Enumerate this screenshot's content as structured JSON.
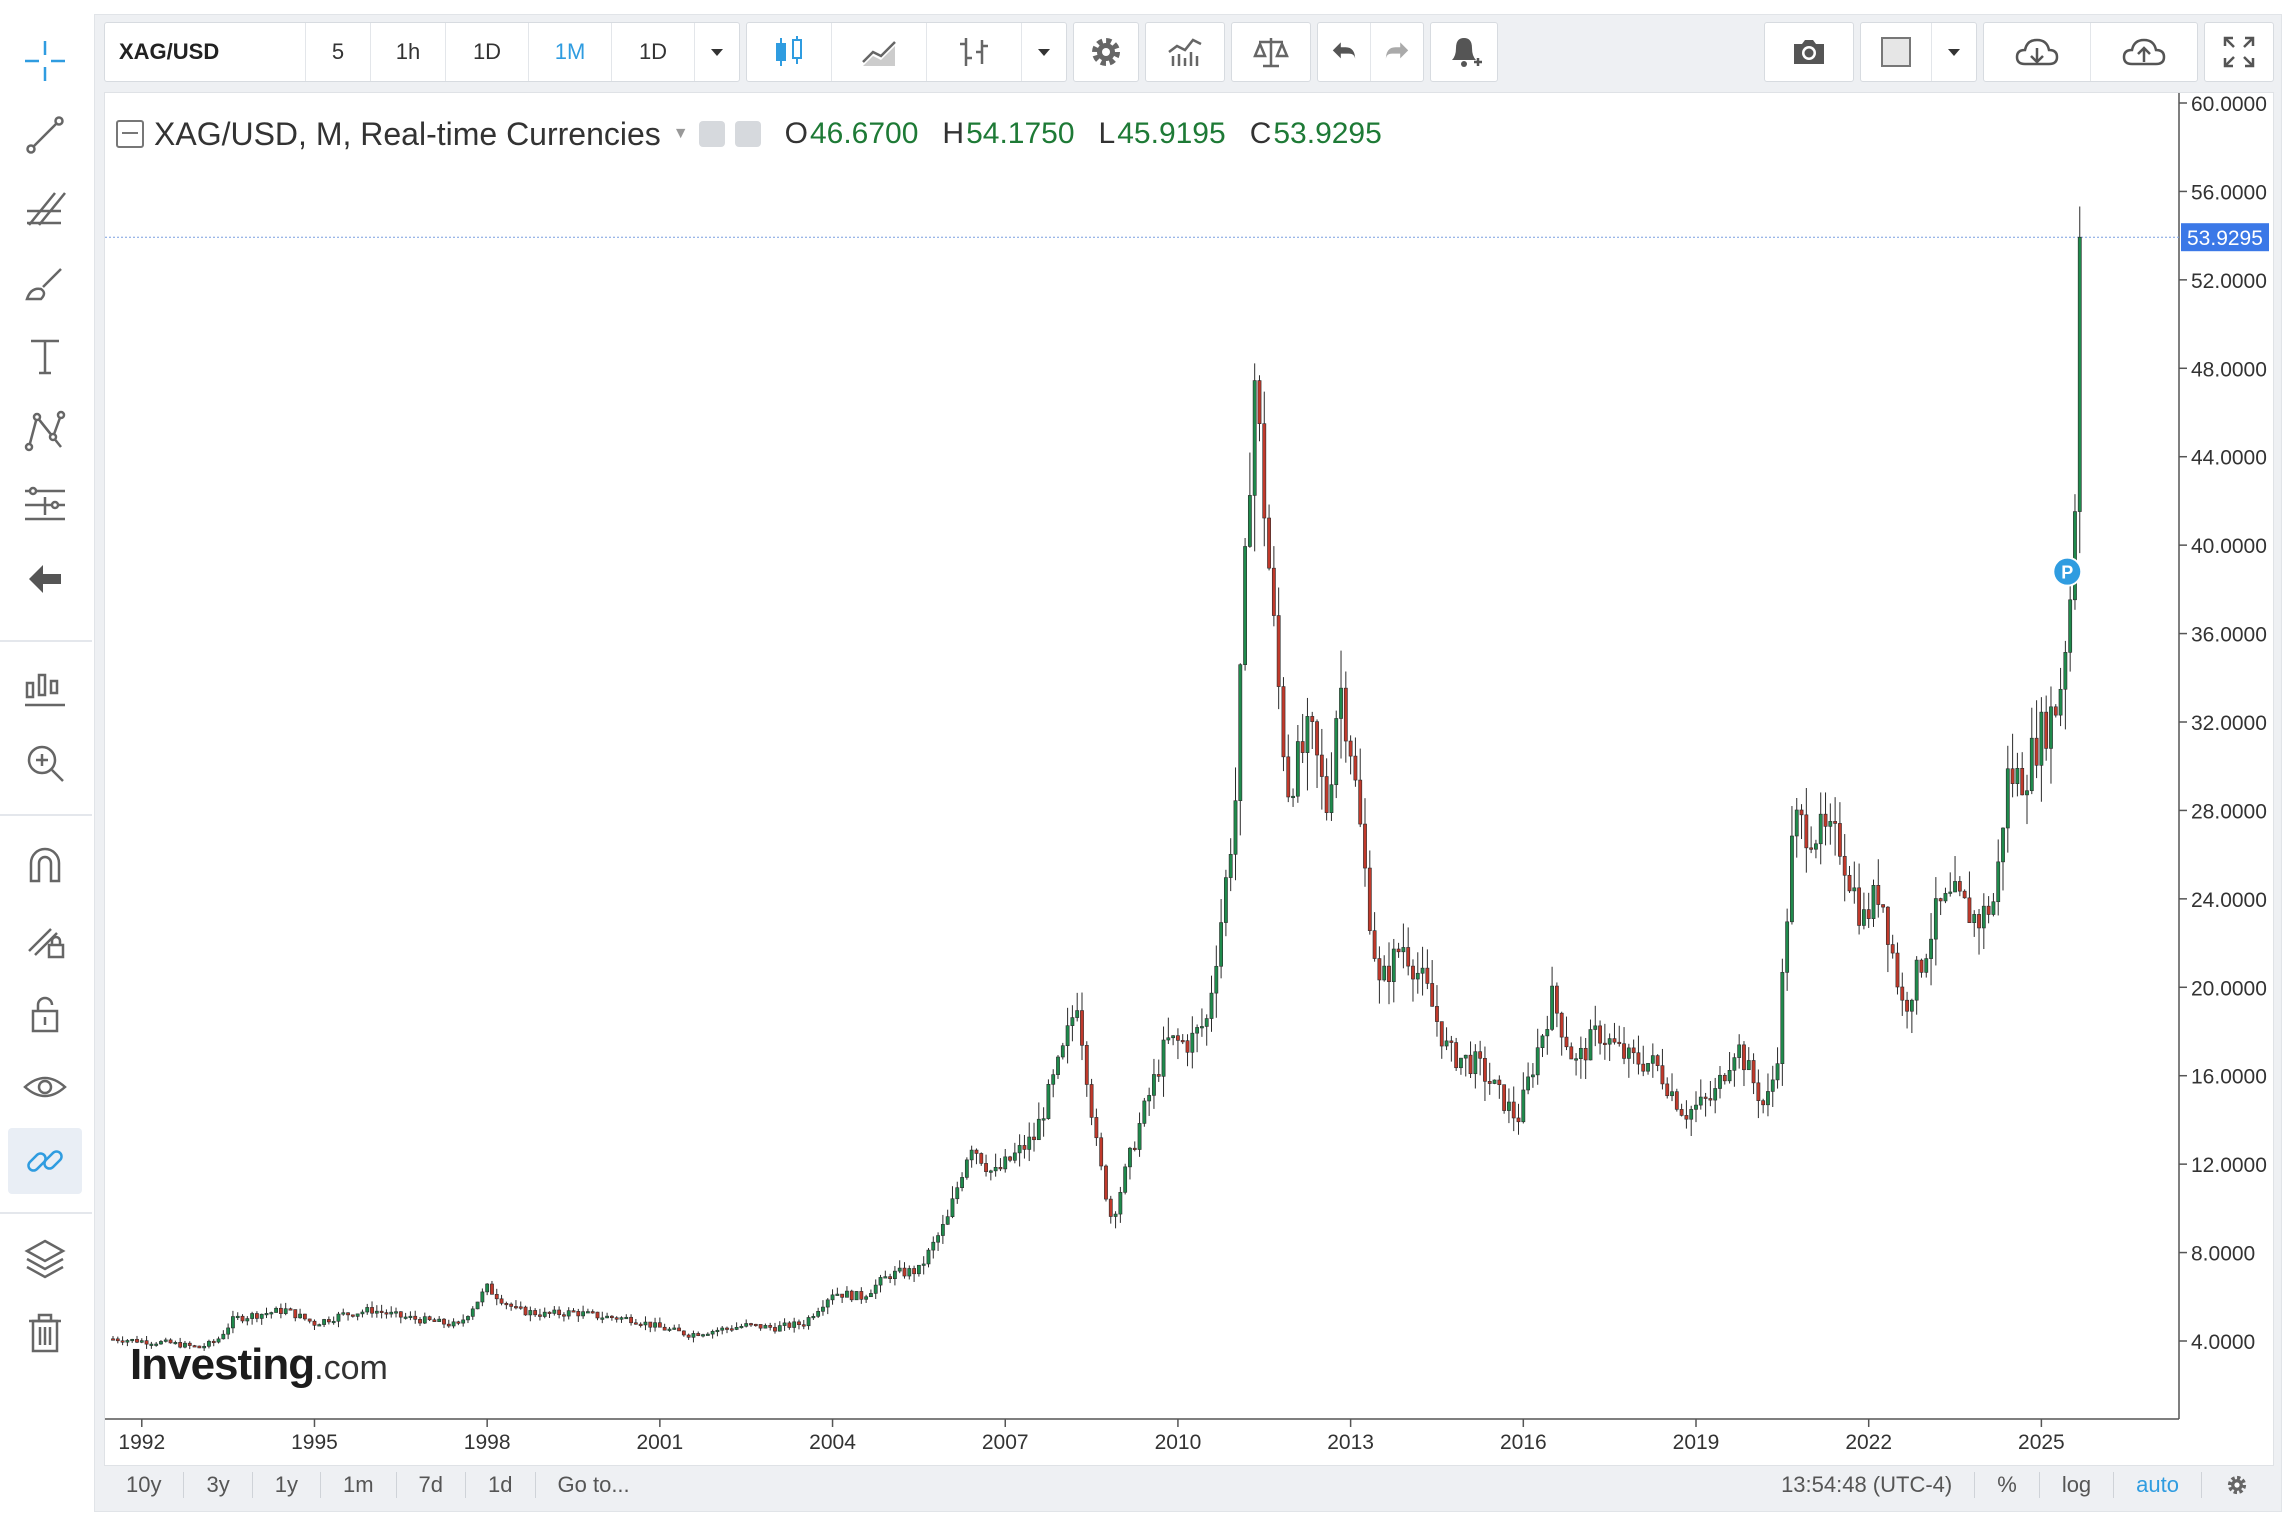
{
  "toolbar": {
    "symbol": "XAG/USD",
    "intervals": [
      "5",
      "1h",
      "1D",
      "1M",
      "1D"
    ],
    "active_interval": "1M"
  },
  "legend": {
    "title": "XAG/USD, M, Real-time Currencies",
    "o_label": "O",
    "o_value": "46.6700",
    "h_label": "H",
    "h_value": "54.1750",
    "l_label": "L",
    "l_value": "45.9195",
    "c_label": "C",
    "c_value": "53.9295"
  },
  "watermark": {
    "brand": "Investing",
    "suffix": ".com"
  },
  "bottom_bar": {
    "ranges": [
      "10y",
      "3y",
      "1y",
      "1m",
      "7d",
      "1d"
    ],
    "goto": "Go to...",
    "time": "13:54:48 (UTC-4)",
    "percent": "%",
    "log": "log",
    "auto": "auto"
  },
  "colors": {
    "up": "#1f8a4c",
    "down": "#c0392b",
    "accent": "#2f9ce0",
    "price_label_bg": "#3b78e7"
  },
  "icons": {
    "left_toolbar": [
      "crosshair-icon",
      "trend-line-icon",
      "fib-icon",
      "brush-icon",
      "text-icon",
      "pattern-icon",
      "measure-icon",
      "back-arrow-icon",
      "indicators-icon",
      "zoom-in-icon",
      "magnet-icon",
      "lock-drawing-icon",
      "unlock-icon",
      "eye-icon",
      "link-icon",
      "layers-icon",
      "trash-icon"
    ]
  },
  "chart_data": {
    "type": "candlestick",
    "symbol": "XAG/USD",
    "timeframe": "Monthly",
    "y_axis": {
      "min": 0.0,
      "max": 60.0,
      "ticks": [
        "60.0000",
        "56.0000",
        "52.0000",
        "48.0000",
        "44.0000",
        "40.0000",
        "36.0000",
        "32.0000",
        "28.0000",
        "24.0000",
        "20.0000",
        "16.0000",
        "12.0000",
        "8.0000",
        "4.0000"
      ]
    },
    "x_axis": {
      "start_year": 1991.5,
      "end_year": 2026.8,
      "ticks": [
        "1992",
        "1995",
        "1998",
        "2001",
        "2004",
        "2007",
        "2010",
        "2013",
        "2016",
        "2019",
        "2022",
        "2025"
      ]
    },
    "last_price": 53.9295,
    "last_price_label": "53.9295",
    "marker": {
      "label": "P",
      "year": 2025.45,
      "price": 38.8
    },
    "price_path": [
      [
        1991.5,
        4.1
      ],
      [
        1992.0,
        4.0
      ],
      [
        1992.5,
        3.9
      ],
      [
        1993.0,
        3.7
      ],
      [
        1993.3,
        4.0
      ],
      [
        1993.6,
        5.0
      ],
      [
        1994.0,
        5.2
      ],
      [
        1994.5,
        5.4
      ],
      [
        1995.0,
        4.8
      ],
      [
        1995.5,
        5.2
      ],
      [
        1996.0,
        5.4
      ],
      [
        1996.5,
        5.1
      ],
      [
        1997.0,
        4.9
      ],
      [
        1997.5,
        4.7
      ],
      [
        1998.0,
        6.4
      ],
      [
        1998.5,
        5.4
      ],
      [
        1999.0,
        5.2
      ],
      [
        1999.5,
        5.3
      ],
      [
        2000.0,
        5.1
      ],
      [
        2000.5,
        5.0
      ],
      [
        2001.0,
        4.6
      ],
      [
        2001.5,
        4.3
      ],
      [
        2002.0,
        4.5
      ],
      [
        2002.5,
        4.7
      ],
      [
        2003.0,
        4.6
      ],
      [
        2003.5,
        4.8
      ],
      [
        2004.0,
        6.2
      ],
      [
        2004.5,
        6.0
      ],
      [
        2005.0,
        7.0
      ],
      [
        2005.5,
        7.2
      ],
      [
        2006.0,
        9.5
      ],
      [
        2006.4,
        13.0
      ],
      [
        2006.8,
        11.5
      ],
      [
        2007.5,
        13.2
      ],
      [
        2008.0,
        17.0
      ],
      [
        2008.25,
        19.5
      ],
      [
        2008.6,
        12.5
      ],
      [
        2008.85,
        9.5
      ],
      [
        2009.3,
        13.5
      ],
      [
        2009.8,
        17.5
      ],
      [
        2010.2,
        17.5
      ],
      [
        2010.5,
        18.5
      ],
      [
        2010.8,
        24.0
      ],
      [
        2011.0,
        28.5
      ],
      [
        2011.32,
        48.0
      ],
      [
        2011.7,
        35.0
      ],
      [
        2011.9,
        29.0
      ],
      [
        2012.3,
        31.5
      ],
      [
        2012.6,
        28.0
      ],
      [
        2012.8,
        34.0
      ],
      [
        2013.0,
        31.0
      ],
      [
        2013.3,
        24.0
      ],
      [
        2013.5,
        20.0
      ],
      [
        2013.9,
        22.0
      ],
      [
        2014.3,
        20.0
      ],
      [
        2014.7,
        17.0
      ],
      [
        2015.2,
        16.5
      ],
      [
        2015.9,
        14.0
      ],
      [
        2016.5,
        19.5
      ],
      [
        2016.9,
        16.5
      ],
      [
        2017.3,
        18.0
      ],
      [
        2017.8,
        16.8
      ],
      [
        2018.3,
        16.5
      ],
      [
        2018.8,
        14.3
      ],
      [
        2019.3,
        15.0
      ],
      [
        2019.7,
        17.5
      ],
      [
        2020.2,
        14.5
      ],
      [
        2020.4,
        16.5
      ],
      [
        2020.6,
        24.0
      ],
      [
        2020.7,
        27.5
      ],
      [
        2021.1,
        27.0
      ],
      [
        2021.5,
        26.5
      ],
      [
        2021.9,
        23.0
      ],
      [
        2022.2,
        24.5
      ],
      [
        2022.6,
        19.0
      ],
      [
        2022.9,
        21.0
      ],
      [
        2023.2,
        23.5
      ],
      [
        2023.5,
        24.0
      ],
      [
        2023.9,
        23.0
      ],
      [
        2024.2,
        24.0
      ],
      [
        2024.4,
        29.5
      ],
      [
        2024.7,
        29.5
      ],
      [
        2024.9,
        31.0
      ],
      [
        2025.1,
        32.0
      ],
      [
        2025.3,
        33.0
      ],
      [
        2025.45,
        36.5
      ],
      [
        2025.55,
        39.0
      ],
      [
        2025.62,
        46.0
      ],
      [
        2025.7,
        53.9
      ]
    ]
  }
}
